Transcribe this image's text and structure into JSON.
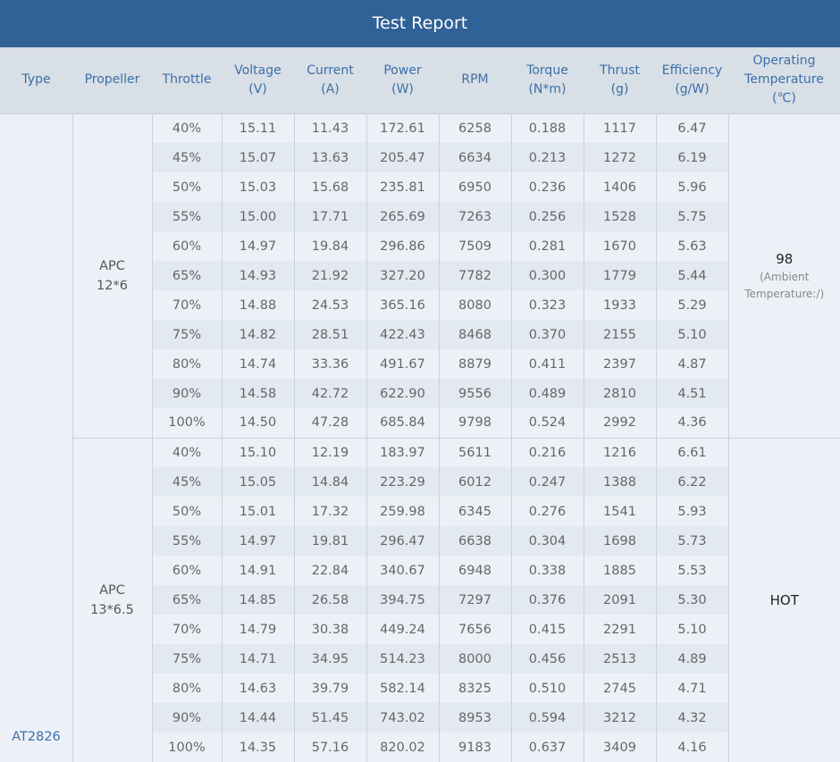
{
  "title": "Test Report",
  "headers": [
    "Type",
    "Propeller",
    "Throttle",
    "Voltage\n(V)",
    "Current\n(A)",
    "Power\n(W)",
    "RPM",
    "Torque\n(N*m)",
    "Thrust\n(g)",
    "Efficiency\n(g/W)",
    "Operating\nTemperature\n(℃)"
  ],
  "type": "AT2826",
  "groups": [
    {
      "propeller": "APC\n12*6",
      "temp": "98",
      "temp_note": "(Ambient\nTemperature:/)",
      "rows": [
        [
          "40%",
          "15.11",
          "11.43",
          "172.61",
          "6258",
          "0.188",
          "1117",
          "6.47"
        ],
        [
          "45%",
          "15.07",
          "13.63",
          "205.47",
          "6634",
          "0.213",
          "1272",
          "6.19"
        ],
        [
          "50%",
          "15.03",
          "15.68",
          "235.81",
          "6950",
          "0.236",
          "1406",
          "5.96"
        ],
        [
          "55%",
          "15.00",
          "17.71",
          "265.69",
          "7263",
          "0.256",
          "1528",
          "5.75"
        ],
        [
          "60%",
          "14.97",
          "19.84",
          "296.86",
          "7509",
          "0.281",
          "1670",
          "5.63"
        ],
        [
          "65%",
          "14.93",
          "21.92",
          "327.20",
          "7782",
          "0.300",
          "1779",
          "5.44"
        ],
        [
          "70%",
          "14.88",
          "24.53",
          "365.16",
          "8080",
          "0.323",
          "1933",
          "5.29"
        ],
        [
          "75%",
          "14.82",
          "28.51",
          "422.43",
          "8468",
          "0.370",
          "2155",
          "5.10"
        ],
        [
          "80%",
          "14.74",
          "33.36",
          "491.67",
          "8879",
          "0.411",
          "2397",
          "4.87"
        ],
        [
          "90%",
          "14.58",
          "42.72",
          "622.90",
          "9556",
          "0.489",
          "2810",
          "4.51"
        ],
        [
          "100%",
          "14.50",
          "47.28",
          "685.84",
          "9798",
          "0.524",
          "2992",
          "4.36"
        ]
      ]
    },
    {
      "propeller": "APC\n13*6.5",
      "temp": "HOT",
      "temp_note": "",
      "rows": [
        [
          "40%",
          "15.10",
          "12.19",
          "183.97",
          "5611",
          "0.216",
          "1216",
          "6.61"
        ],
        [
          "45%",
          "15.05",
          "14.84",
          "223.29",
          "6012",
          "0.247",
          "1388",
          "6.22"
        ],
        [
          "50%",
          "15.01",
          "17.32",
          "259.98",
          "6345",
          "0.276",
          "1541",
          "5.93"
        ],
        [
          "55%",
          "14.97",
          "19.81",
          "296.47",
          "6638",
          "0.304",
          "1698",
          "5.73"
        ],
        [
          "60%",
          "14.91",
          "22.84",
          "340.67",
          "6948",
          "0.338",
          "1885",
          "5.53"
        ],
        [
          "65%",
          "14.85",
          "26.58",
          "394.75",
          "7297",
          "0.376",
          "2091",
          "5.30"
        ],
        [
          "70%",
          "14.79",
          "30.38",
          "449.24",
          "7656",
          "0.415",
          "2291",
          "5.10"
        ],
        [
          "75%",
          "14.71",
          "34.95",
          "514.23",
          "8000",
          "0.456",
          "2513",
          "4.89"
        ],
        [
          "80%",
          "14.63",
          "39.79",
          "582.14",
          "8325",
          "0.510",
          "2745",
          "4.71"
        ],
        [
          "90%",
          "14.44",
          "51.45",
          "743.02",
          "8953",
          "0.594",
          "3212",
          "4.32"
        ],
        [
          "100%",
          "14.35",
          "57.16",
          "820.02",
          "9183",
          "0.637",
          "3409",
          "4.16"
        ]
      ]
    }
  ]
}
